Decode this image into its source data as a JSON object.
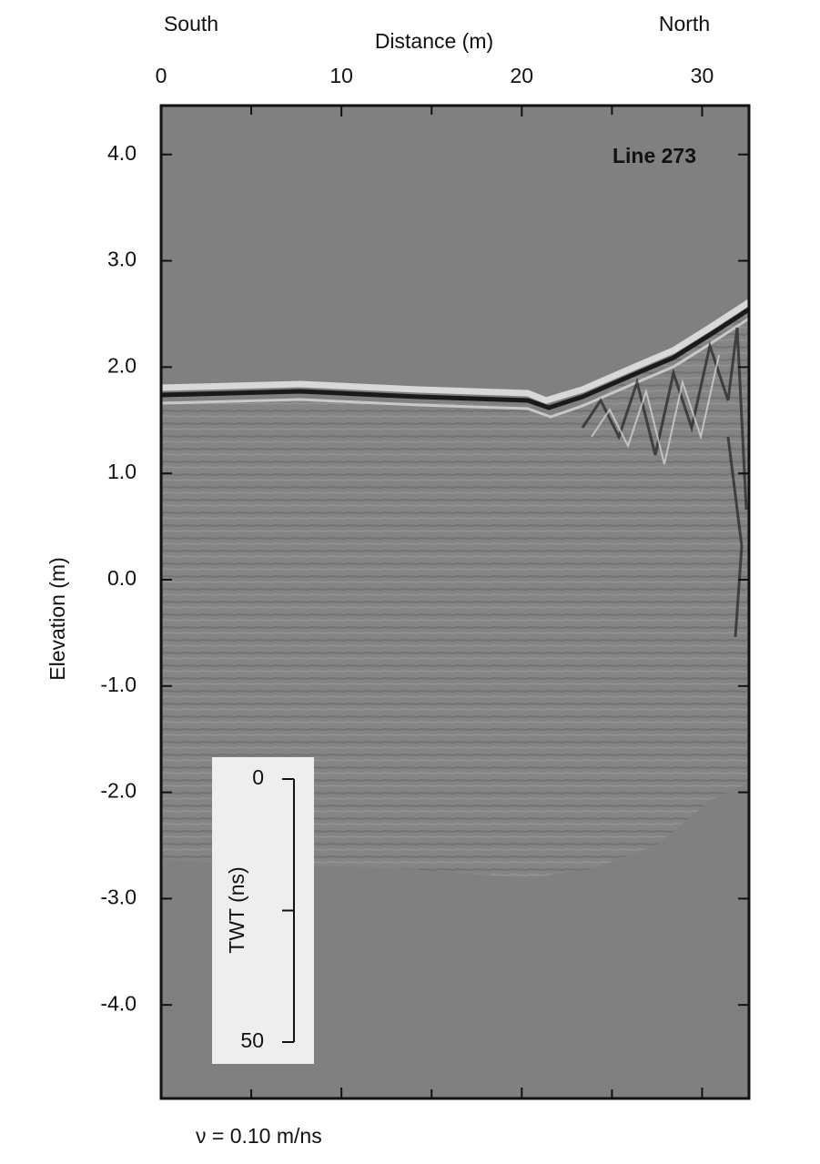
{
  "chart_data": {
    "type": "radargram",
    "title": "Line 273",
    "xlabel": "Distance (m)",
    "ylabel": "Elevation (m)",
    "left_end_label": "South",
    "right_end_label": "North",
    "velocity_note": "ν = 0.10 m/ns",
    "xlim": [
      0,
      32.6
    ],
    "xticks": [
      0,
      10,
      20,
      30
    ],
    "xminorticks": [
      5,
      15,
      25
    ],
    "ylim": [
      -4.88,
      4.46
    ],
    "yticks": [
      {
        "value": 4,
        "label": "4.0"
      },
      {
        "value": 3,
        "label": "3.0"
      },
      {
        "value": 2,
        "label": "2.0"
      },
      {
        "value": 1,
        "label": "1.0"
      },
      {
        "value": 0,
        "label": "0.0"
      },
      {
        "value": -1,
        "label": "-1.0"
      },
      {
        "value": -2,
        "label": "-2.0"
      },
      {
        "value": -3,
        "label": "-3.0"
      },
      {
        "value": -4,
        "label": "-4.0"
      }
    ],
    "twt_scale": {
      "label": "TWT (ns)",
      "lim": [
        0,
        50
      ],
      "ticks": [
        0,
        50
      ],
      "minorticks": [
        25
      ]
    }
  }
}
